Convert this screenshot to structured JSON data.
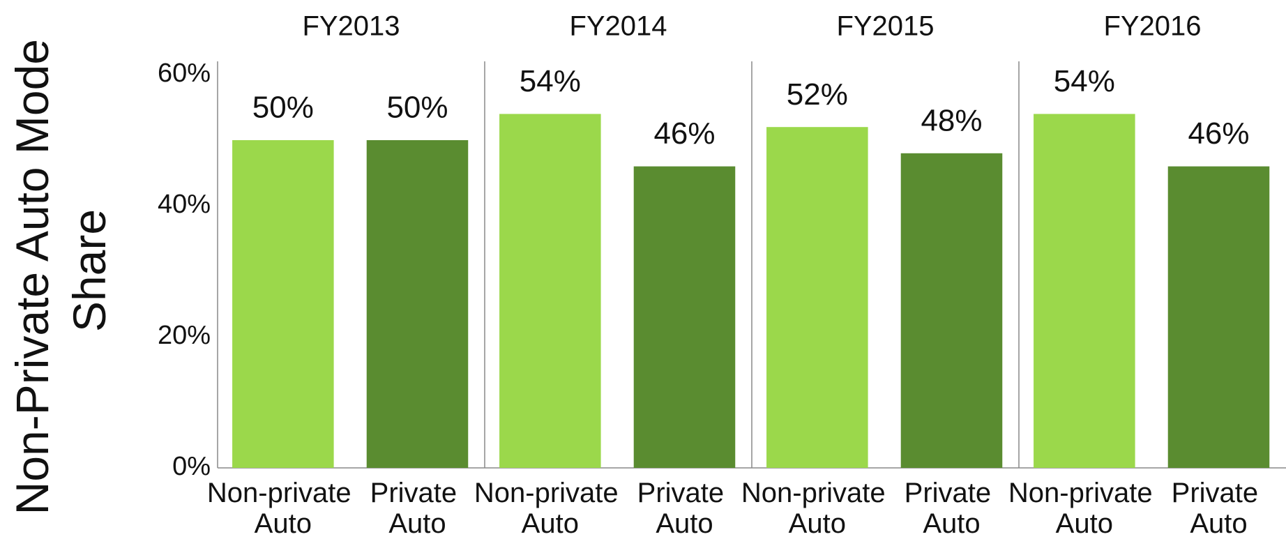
{
  "chart_data": {
    "type": "bar",
    "y_label": "Non-Private Auto Mode Share",
    "groups": [
      "FY2013",
      "FY2014",
      "FY2015",
      "FY2016"
    ],
    "series": [
      {
        "name": "Non-private Auto",
        "color": "#9bd84b",
        "values": [
          50,
          54,
          52,
          54
        ],
        "value_labels": [
          "50%",
          "54%",
          "52%",
          "54%"
        ]
      },
      {
        "name": "Private Auto",
        "color": "#5a8c30",
        "values": [
          50,
          46,
          48,
          46
        ],
        "value_labels": [
          "50%",
          "46%",
          "48%",
          "46%"
        ]
      }
    ],
    "ylim": [
      0,
      60
    ],
    "yticks": [
      {
        "value": 0,
        "label": "0%"
      },
      {
        "value": 20,
        "label": "20%"
      },
      {
        "value": 40,
        "label": "40%"
      },
      {
        "value": 60,
        "label": "60%"
      }
    ],
    "grid": false
  }
}
